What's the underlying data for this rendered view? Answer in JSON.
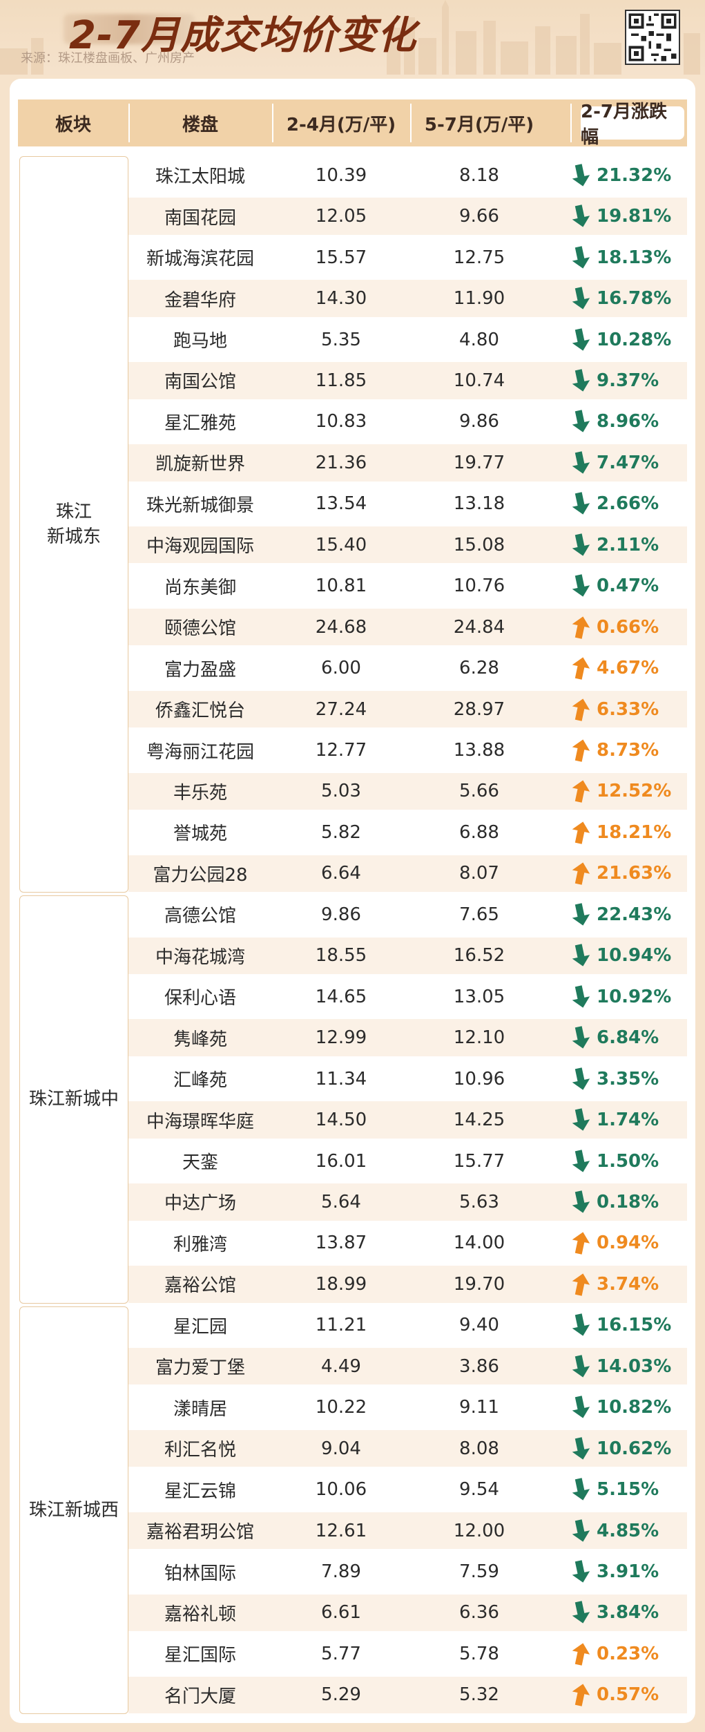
{
  "header": {
    "title": "2-7月成交均价变化",
    "source": "来源：珠江楼盘画板、广州房产"
  },
  "table": {
    "columns": [
      "板块",
      "楼盘",
      "2-4月(万/平)",
      "5-7月(万/平)",
      "2-7月涨跌幅"
    ],
    "districts": [
      {
        "name_line1": "珠江",
        "name_line2": "新城东",
        "start": 0,
        "count": 18
      },
      {
        "name_line1": "珠江新城中",
        "name_line2": "",
        "start": 18,
        "count": 10
      },
      {
        "name_line1": "珠江新城西",
        "name_line2": "",
        "start": 28,
        "count": 10
      }
    ],
    "rows": [
      {
        "name": "珠江太阳城",
        "a": "10.39",
        "b": "8.18",
        "chg": "21.32%",
        "dir": "down"
      },
      {
        "name": "南国花园",
        "a": "12.05",
        "b": "9.66",
        "chg": "19.81%",
        "dir": "down"
      },
      {
        "name": "新城海滨花园",
        "a": "15.57",
        "b": "12.75",
        "chg": "18.13%",
        "dir": "down"
      },
      {
        "name": "金碧华府",
        "a": "14.30",
        "b": "11.90",
        "chg": "16.78%",
        "dir": "down"
      },
      {
        "name": "跑马地",
        "a": "5.35",
        "b": "4.80",
        "chg": "10.28%",
        "dir": "down"
      },
      {
        "name": "南国公馆",
        "a": "11.85",
        "b": "10.74",
        "chg": "9.37%",
        "dir": "down"
      },
      {
        "name": "星汇雅苑",
        "a": "10.83",
        "b": "9.86",
        "chg": "8.96%",
        "dir": "down"
      },
      {
        "name": "凯旋新世界",
        "a": "21.36",
        "b": "19.77",
        "chg": "7.47%",
        "dir": "down"
      },
      {
        "name": "珠光新城御景",
        "a": "13.54",
        "b": "13.18",
        "chg": "2.66%",
        "dir": "down"
      },
      {
        "name": "中海观园国际",
        "a": "15.40",
        "b": "15.08",
        "chg": "2.11%",
        "dir": "down"
      },
      {
        "name": "尚东美御",
        "a": "10.81",
        "b": "10.76",
        "chg": "0.47%",
        "dir": "down"
      },
      {
        "name": "颐德公馆",
        "a": "24.68",
        "b": "24.84",
        "chg": "0.66%",
        "dir": "up"
      },
      {
        "name": "富力盈盛",
        "a": "6.00",
        "b": "6.28",
        "chg": "4.67%",
        "dir": "up"
      },
      {
        "name": "侨鑫汇悦台",
        "a": "27.24",
        "b": "28.97",
        "chg": "6.33%",
        "dir": "up"
      },
      {
        "name": "粤海丽江花园",
        "a": "12.77",
        "b": "13.88",
        "chg": "8.73%",
        "dir": "up"
      },
      {
        "name": "丰乐苑",
        "a": "5.03",
        "b": "5.66",
        "chg": "12.52%",
        "dir": "up"
      },
      {
        "name": "誉城苑",
        "a": "5.82",
        "b": "6.88",
        "chg": "18.21%",
        "dir": "up"
      },
      {
        "name": "富力公园28",
        "a": "6.64",
        "b": "8.07",
        "chg": "21.63%",
        "dir": "up"
      },
      {
        "name": "高德公馆",
        "a": "9.86",
        "b": "7.65",
        "chg": "22.43%",
        "dir": "down"
      },
      {
        "name": "中海花城湾",
        "a": "18.55",
        "b": "16.52",
        "chg": "10.94%",
        "dir": "down"
      },
      {
        "name": "保利心语",
        "a": "14.65",
        "b": "13.05",
        "chg": "10.92%",
        "dir": "down"
      },
      {
        "name": "隽峰苑",
        "a": "12.99",
        "b": "12.10",
        "chg": "6.84%",
        "dir": "down"
      },
      {
        "name": "汇峰苑",
        "a": "11.34",
        "b": "10.96",
        "chg": "3.35%",
        "dir": "down"
      },
      {
        "name": "中海璟晖华庭",
        "a": "14.50",
        "b": "14.25",
        "chg": "1.74%",
        "dir": "down"
      },
      {
        "name": "天銮",
        "a": "16.01",
        "b": "15.77",
        "chg": "1.50%",
        "dir": "down"
      },
      {
        "name": "中达广场",
        "a": "5.64",
        "b": "5.63",
        "chg": "0.18%",
        "dir": "down"
      },
      {
        "name": "利雅湾",
        "a": "13.87",
        "b": "14.00",
        "chg": "0.94%",
        "dir": "up"
      },
      {
        "name": "嘉裕公馆",
        "a": "18.99",
        "b": "19.70",
        "chg": "3.74%",
        "dir": "up"
      },
      {
        "name": "星汇园",
        "a": "11.21",
        "b": "9.40",
        "chg": "16.15%",
        "dir": "down"
      },
      {
        "name": "富力爱丁堡",
        "a": "4.49",
        "b": "3.86",
        "chg": "14.03%",
        "dir": "down"
      },
      {
        "name": "漾晴居",
        "a": "10.22",
        "b": "9.11",
        "chg": "10.82%",
        "dir": "down"
      },
      {
        "name": "利汇名悦",
        "a": "9.04",
        "b": "8.08",
        "chg": "10.62%",
        "dir": "down"
      },
      {
        "name": "星汇云锦",
        "a": "10.06",
        "b": "9.54",
        "chg": "5.15%",
        "dir": "down"
      },
      {
        "name": "嘉裕君玥公馆",
        "a": "12.61",
        "b": "12.00",
        "chg": "4.85%",
        "dir": "down"
      },
      {
        "name": "铂林国际",
        "a": "7.89",
        "b": "7.59",
        "chg": "3.91%",
        "dir": "down"
      },
      {
        "name": "嘉裕礼顿",
        "a": "6.61",
        "b": "6.36",
        "chg": "3.84%",
        "dir": "down"
      },
      {
        "name": "星汇国际",
        "a": "5.77",
        "b": "5.78",
        "chg": "0.23%",
        "dir": "up"
      },
      {
        "name": "名门大厦",
        "a": "5.29",
        "b": "5.32",
        "chg": "0.57%",
        "dir": "up"
      }
    ]
  },
  "colors": {
    "down": "#1f7a5c",
    "up": "#ef8a1f",
    "header_bg": "#f1d2a8"
  },
  "icons": {
    "down": "arrow-down-icon",
    "up": "arrow-up-icon",
    "qr": "qr-code-icon"
  }
}
